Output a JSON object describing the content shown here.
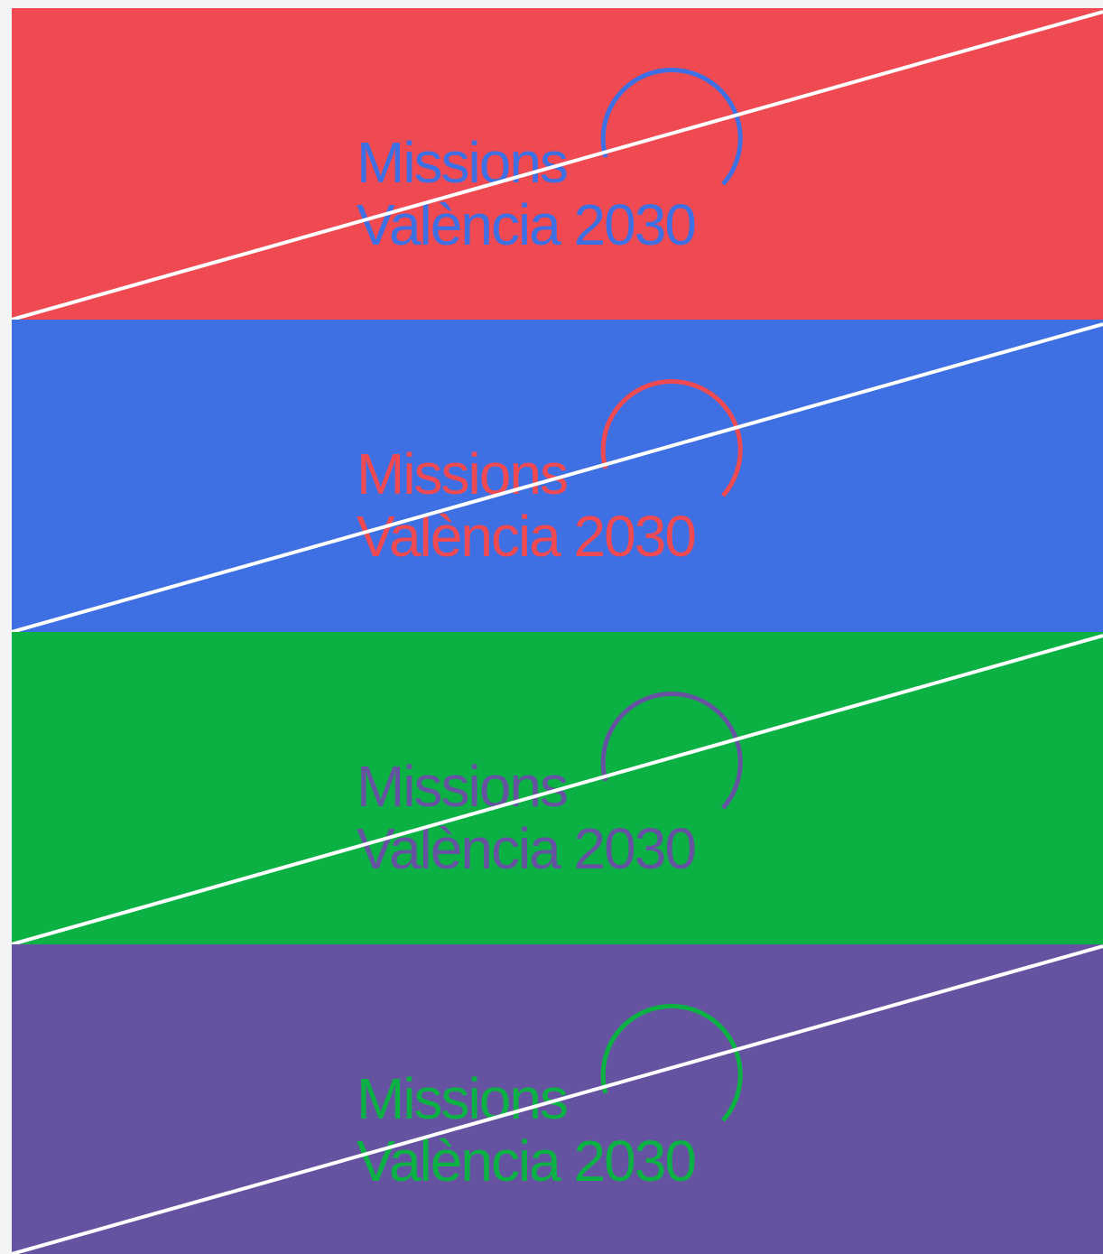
{
  "panels": [
    {
      "background": "#ef4a52",
      "logo_color": "#3e6fe3",
      "logo": {
        "line1": "Missions",
        "line2": "València 2030"
      }
    },
    {
      "background": "#3e6fe3",
      "logo_color": "#ef4a52",
      "logo": {
        "line1": "Missions",
        "line2": "València 2030"
      }
    },
    {
      "background": "#0bb143",
      "logo_color": "#6553a1",
      "logo": {
        "line1": "Missions",
        "line2": "València 2030"
      }
    },
    {
      "background": "#6553a1",
      "logo_color": "#0bb143",
      "logo": {
        "line1": "Missions",
        "line2": "València 2030"
      }
    }
  ],
  "divider_color": "#ffffff",
  "page_background": "#f2f4f6"
}
